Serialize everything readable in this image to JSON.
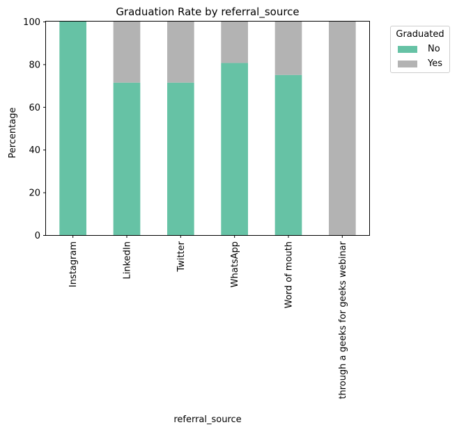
{
  "chart_data": {
    "type": "bar",
    "stacked": true,
    "title": "Graduation Rate by referral_source",
    "xlabel": "referral_source",
    "ylabel": "Percentage",
    "ylim": [
      0,
      100
    ],
    "yticks": [
      0,
      20,
      40,
      60,
      80,
      100
    ],
    "categories": [
      "Instagram",
      "LinkedIn",
      "Twitter",
      "WhatsApp",
      "Word of mouth",
      "through a geeks for geeks webinar"
    ],
    "series": [
      {
        "name": "No",
        "color": "#66c2a5",
        "values": [
          100,
          71.4,
          71.4,
          80.6,
          75,
          0
        ]
      },
      {
        "name": "Yes",
        "color": "#b3b3b3",
        "values": [
          0,
          28.6,
          28.6,
          19.4,
          25,
          100
        ]
      }
    ],
    "legend": {
      "title": "Graduated",
      "placement": "outside-top-right"
    },
    "grid": false
  }
}
